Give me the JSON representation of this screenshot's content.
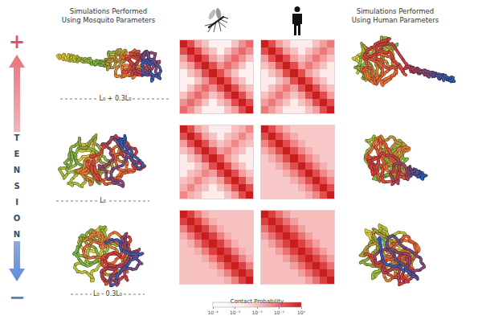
{
  "headers": {
    "mosquito": [
      "Simulations Performed",
      "Using Mosquito Parameters"
    ],
    "human": [
      "Simulations Performed",
      "Using Human Parameters"
    ]
  },
  "tension": {
    "label": "TENSION",
    "more": "+",
    "less": "−"
  },
  "chart_data": {
    "type": "heatmap",
    "log": true,
    "tick_labels": false,
    "colorbar": {
      "title": "Contact Probability",
      "zlim": [
        0.0001,
        1
      ],
      "zticks": [
        {
          "value": 0.0001,
          "label": "10⁻⁴"
        },
        {
          "value": 0.001,
          "label": "10⁻³"
        },
        {
          "value": 0.01,
          "label": "10⁻²"
        },
        {
          "value": 0.1,
          "label": "10⁻¹"
        },
        {
          "value": 1,
          "label": "10⁰"
        }
      ]
    },
    "rows": [
      {
        "length_label": "L₀ + 0.3L₀",
        "mosquito_cells": [
          [
            1,
            0.2,
            0.03,
            0.01,
            0.001,
            0.001,
            0.001,
            0.01,
            0.04,
            0.1
          ],
          [
            0.2,
            1,
            0.2,
            0.03,
            0.01,
            0.001,
            0.01,
            0.04,
            0.1,
            0.04
          ],
          [
            0.03,
            0.2,
            1,
            0.2,
            0.03,
            0.01,
            0.04,
            0.1,
            0.04,
            0.01
          ],
          [
            0.01,
            0.03,
            0.2,
            1,
            0.2,
            0.04,
            0.1,
            0.04,
            0.01,
            0.001
          ],
          [
            0.001,
            0.01,
            0.03,
            0.2,
            1,
            0.2,
            0.04,
            0.01,
            0.001,
            0.001
          ],
          [
            0.001,
            0.001,
            0.01,
            0.04,
            0.2,
            1,
            0.2,
            0.03,
            0.01,
            0.001
          ],
          [
            0.001,
            0.01,
            0.04,
            0.1,
            0.04,
            0.2,
            1,
            0.2,
            0.03,
            0.01
          ],
          [
            0.01,
            0.04,
            0.1,
            0.04,
            0.01,
            0.03,
            0.2,
            1,
            0.2,
            0.03
          ],
          [
            0.04,
            0.1,
            0.04,
            0.01,
            0.001,
            0.01,
            0.03,
            0.2,
            1,
            0.2
          ],
          [
            0.1,
            0.04,
            0.01,
            0.001,
            0.001,
            0.001,
            0.01,
            0.03,
            0.2,
            1
          ]
        ],
        "human_cells": [
          [
            1,
            0.2,
            0.03,
            0.01,
            0.002,
            0.002,
            0.002,
            0.01,
            0.03,
            0.07
          ],
          [
            0.2,
            1,
            0.2,
            0.03,
            0.01,
            0.002,
            0.01,
            0.03,
            0.07,
            0.03
          ],
          [
            0.03,
            0.2,
            1,
            0.2,
            0.03,
            0.01,
            0.03,
            0.07,
            0.03,
            0.01
          ],
          [
            0.01,
            0.03,
            0.2,
            1,
            0.2,
            0.03,
            0.07,
            0.03,
            0.01,
            0.002
          ],
          [
            0.002,
            0.01,
            0.03,
            0.2,
            1,
            0.2,
            0.03,
            0.01,
            0.002,
            0.002
          ],
          [
            0.002,
            0.002,
            0.01,
            0.03,
            0.2,
            1,
            0.2,
            0.03,
            0.01,
            0.002
          ],
          [
            0.002,
            0.01,
            0.03,
            0.07,
            0.03,
            0.2,
            1,
            0.2,
            0.03,
            0.01
          ],
          [
            0.01,
            0.03,
            0.07,
            0.03,
            0.01,
            0.03,
            0.2,
            1,
            0.2,
            0.03
          ],
          [
            0.03,
            0.07,
            0.03,
            0.01,
            0.002,
            0.01,
            0.03,
            0.2,
            1,
            0.2
          ],
          [
            0.07,
            0.03,
            0.01,
            0.002,
            0.002,
            0.002,
            0.01,
            0.03,
            0.2,
            1
          ]
        ]
      },
      {
        "length_label": "L₀",
        "mosquito_cells": [
          [
            1,
            0.2,
            0.03,
            0.01,
            0.002,
            0.002,
            0.002,
            0.01,
            0.02,
            0.05
          ],
          [
            0.2,
            1,
            0.2,
            0.03,
            0.01,
            0.002,
            0.01,
            0.02,
            0.05,
            0.02
          ],
          [
            0.03,
            0.2,
            1,
            0.2,
            0.03,
            0.01,
            0.02,
            0.05,
            0.02,
            0.01
          ],
          [
            0.01,
            0.03,
            0.2,
            1,
            0.2,
            0.03,
            0.05,
            0.02,
            0.01,
            0.002
          ],
          [
            0.002,
            0.01,
            0.03,
            0.2,
            1,
            0.2,
            0.03,
            0.01,
            0.002,
            0.002
          ],
          [
            0.002,
            0.002,
            0.01,
            0.03,
            0.2,
            1,
            0.2,
            0.03,
            0.01,
            0.002
          ],
          [
            0.002,
            0.01,
            0.02,
            0.05,
            0.03,
            0.2,
            1,
            0.2,
            0.03,
            0.01
          ],
          [
            0.01,
            0.02,
            0.05,
            0.02,
            0.01,
            0.03,
            0.2,
            1,
            0.2,
            0.03
          ],
          [
            0.02,
            0.05,
            0.02,
            0.01,
            0.002,
            0.01,
            0.03,
            0.2,
            1,
            0.2
          ],
          [
            0.05,
            0.02,
            0.01,
            0.002,
            0.002,
            0.002,
            0.01,
            0.03,
            0.2,
            1
          ]
        ],
        "human_cells": [
          [
            1,
            0.2,
            0.05,
            0.02,
            0.008,
            0.008,
            0.008,
            0.008,
            0.008,
            0.008
          ],
          [
            0.2,
            1,
            0.2,
            0.05,
            0.02,
            0.008,
            0.008,
            0.008,
            0.008,
            0.008
          ],
          [
            0.05,
            0.2,
            1,
            0.2,
            0.05,
            0.02,
            0.008,
            0.008,
            0.008,
            0.008
          ],
          [
            0.02,
            0.05,
            0.2,
            1,
            0.2,
            0.05,
            0.02,
            0.008,
            0.008,
            0.008
          ],
          [
            0.008,
            0.02,
            0.05,
            0.2,
            1,
            0.2,
            0.05,
            0.02,
            0.008,
            0.008
          ],
          [
            0.008,
            0.008,
            0.02,
            0.05,
            0.2,
            1,
            0.2,
            0.05,
            0.02,
            0.008
          ],
          [
            0.008,
            0.008,
            0.008,
            0.02,
            0.05,
            0.2,
            1,
            0.2,
            0.05,
            0.02
          ],
          [
            0.008,
            0.008,
            0.008,
            0.008,
            0.02,
            0.05,
            0.2,
            1,
            0.2,
            0.05
          ],
          [
            0.008,
            0.008,
            0.008,
            0.008,
            0.008,
            0.02,
            0.05,
            0.2,
            1,
            0.2
          ],
          [
            0.008,
            0.008,
            0.008,
            0.008,
            0.008,
            0.008,
            0.02,
            0.05,
            0.2,
            1
          ]
        ]
      },
      {
        "length_label": "L₀ - 0.3L₀",
        "mosquito_cells": [
          [
            1,
            0.3,
            0.06,
            0.02,
            0.01,
            0.01,
            0.01,
            0.01,
            0.01,
            0.01
          ],
          [
            0.3,
            1,
            0.3,
            0.06,
            0.02,
            0.01,
            0.01,
            0.01,
            0.01,
            0.01
          ],
          [
            0.06,
            0.3,
            1,
            0.3,
            0.06,
            0.02,
            0.01,
            0.01,
            0.01,
            0.01
          ],
          [
            0.02,
            0.06,
            0.3,
            1,
            0.3,
            0.06,
            0.02,
            0.01,
            0.01,
            0.01
          ],
          [
            0.01,
            0.02,
            0.06,
            0.3,
            1,
            0.3,
            0.06,
            0.02,
            0.01,
            0.01
          ],
          [
            0.01,
            0.01,
            0.02,
            0.06,
            0.3,
            1,
            0.3,
            0.06,
            0.02,
            0.01
          ],
          [
            0.01,
            0.01,
            0.01,
            0.02,
            0.06,
            0.3,
            1,
            0.3,
            0.06,
            0.02
          ],
          [
            0.01,
            0.01,
            0.01,
            0.01,
            0.02,
            0.06,
            0.3,
            1,
            0.3,
            0.06
          ],
          [
            0.01,
            0.01,
            0.01,
            0.01,
            0.01,
            0.02,
            0.06,
            0.3,
            1,
            0.3
          ],
          [
            0.01,
            0.01,
            0.01,
            0.01,
            0.01,
            0.01,
            0.02,
            0.06,
            0.3,
            1
          ]
        ],
        "human_cells": [
          [
            1,
            0.3,
            0.08,
            0.03,
            0.012,
            0.012,
            0.012,
            0.012,
            0.012,
            0.012
          ],
          [
            0.3,
            1,
            0.3,
            0.08,
            0.03,
            0.012,
            0.012,
            0.012,
            0.012,
            0.012
          ],
          [
            0.08,
            0.3,
            1,
            0.3,
            0.08,
            0.03,
            0.012,
            0.012,
            0.012,
            0.012
          ],
          [
            0.03,
            0.08,
            0.3,
            1,
            0.3,
            0.08,
            0.03,
            0.012,
            0.012,
            0.012
          ],
          [
            0.012,
            0.03,
            0.08,
            0.3,
            1,
            0.3,
            0.08,
            0.03,
            0.012,
            0.012
          ],
          [
            0.012,
            0.012,
            0.03,
            0.08,
            0.3,
            1,
            0.3,
            0.08,
            0.03,
            0.012
          ],
          [
            0.012,
            0.012,
            0.012,
            0.03,
            0.08,
            0.3,
            1,
            0.3,
            0.08,
            0.03
          ],
          [
            0.012,
            0.012,
            0.012,
            0.012,
            0.03,
            0.08,
            0.3,
            1,
            0.3,
            0.08
          ],
          [
            0.012,
            0.012,
            0.012,
            0.012,
            0.012,
            0.03,
            0.08,
            0.3,
            1,
            0.3
          ],
          [
            0.012,
            0.012,
            0.012,
            0.012,
            0.012,
            0.012,
            0.03,
            0.08,
            0.3,
            1
          ]
        ]
      }
    ]
  }
}
